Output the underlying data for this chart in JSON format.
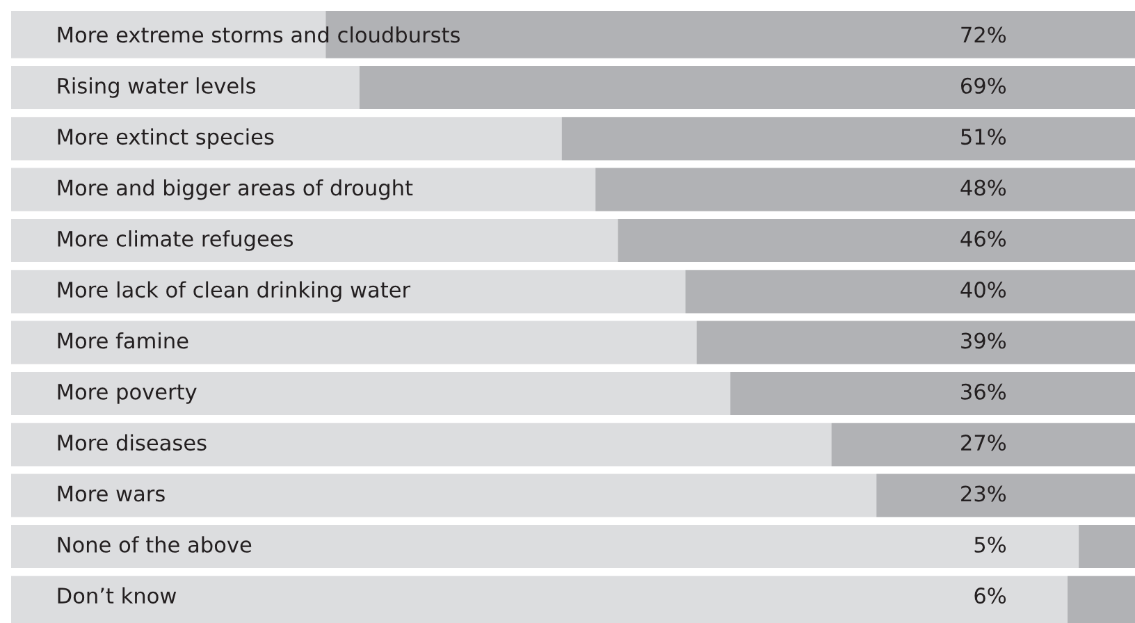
{
  "chart_data": {
    "type": "bar",
    "orientation": "horizontal",
    "categories": [
      "More extreme storms and cloudbursts",
      "Rising water levels",
      "More extinct species",
      "More and bigger areas of drought",
      "More climate refugees",
      "More lack of clean drinking water",
      "More famine",
      "More poverty",
      "More diseases",
      "More wars",
      "None of the above",
      "Don’t know"
    ],
    "values": [
      72,
      69,
      51,
      48,
      46,
      40,
      39,
      36,
      27,
      23,
      5,
      6
    ],
    "value_labels": [
      "72%",
      "69%",
      "51%",
      "48%",
      "46%",
      "40%",
      "39%",
      "36%",
      "27%",
      "23%",
      "5%",
      "6%"
    ],
    "color": "#b1b2b5",
    "xlim": [
      100,
      0
    ]
  }
}
